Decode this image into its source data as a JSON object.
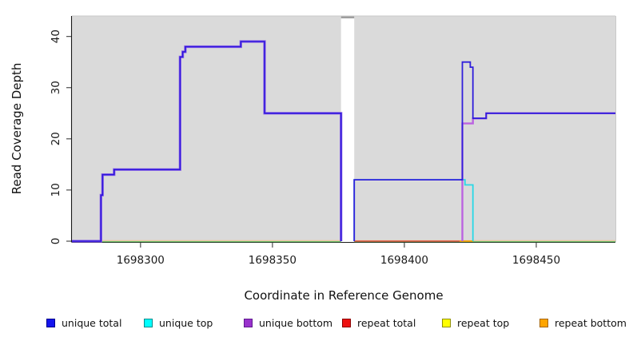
{
  "chart_data": {
    "type": "line",
    "style": "step",
    "title": "",
    "xlabel": "Coordinate in Reference Genome",
    "ylabel": "Read Coverage Depth",
    "x_ticks": [
      1698300,
      1698350,
      1698400,
      1698450
    ],
    "y_ticks": [
      0,
      10,
      20,
      30,
      40
    ],
    "x_range": [
      1698274,
      1698480
    ],
    "y_range": [
      0,
      44
    ],
    "grid": false,
    "legend_position": "bottom",
    "panel_background": "#DADADA",
    "gap": {
      "from": 1698376,
      "to": 1698381,
      "notch_color": "#9E9E9E"
    },
    "baseline": {
      "spans": [
        [
          1698274,
          1698376
        ],
        [
          1698381,
          1698480
        ]
      ],
      "green": "#5BBB5B",
      "peach": "#F0C08A"
    },
    "series": [
      {
        "name": "repeat total",
        "color": "#E03131",
        "width": 1.3,
        "points": [
          [
            1698381,
            0
          ],
          [
            1698421,
            0
          ]
        ]
      },
      {
        "name": "repeat bottom",
        "color": "#F59F00",
        "width": 1.8,
        "points": [
          [
            1698421,
            0
          ],
          [
            1698426,
            0
          ]
        ]
      },
      {
        "name": "unique top",
        "color": "#29D8E6",
        "width": 1.8,
        "points": [
          [
            1698381,
            0
          ],
          [
            1698381,
            12
          ],
          [
            1698423,
            12
          ],
          [
            1698423,
            11
          ],
          [
            1698426,
            11
          ],
          [
            1698426,
            0
          ]
        ]
      },
      {
        "name": "unique bottom (left block)",
        "color": "#8A63E8",
        "width": 3.2,
        "points": [
          [
            1698274,
            0
          ],
          [
            1698285,
            0
          ],
          [
            1698285,
            9
          ],
          [
            1698285.6,
            9
          ],
          [
            1698285.6,
            13
          ],
          [
            1698290,
            13
          ],
          [
            1698290,
            14
          ],
          [
            1698315,
            14
          ],
          [
            1698315,
            36
          ],
          [
            1698316,
            36
          ],
          [
            1698316,
            37
          ],
          [
            1698317,
            37
          ],
          [
            1698317,
            38
          ],
          [
            1698338,
            38
          ],
          [
            1698338,
            39
          ],
          [
            1698347,
            39
          ],
          [
            1698347,
            25
          ],
          [
            1698376,
            25
          ],
          [
            1698376,
            0
          ]
        ]
      },
      {
        "name": "unique total (left block)",
        "color": "#2F16DB",
        "width": 1.6,
        "points": [
          [
            1698274,
            0
          ],
          [
            1698285,
            0
          ],
          [
            1698285,
            9
          ],
          [
            1698285.6,
            9
          ],
          [
            1698285.6,
            13
          ],
          [
            1698290,
            13
          ],
          [
            1698290,
            14
          ],
          [
            1698315,
            14
          ],
          [
            1698315,
            36
          ],
          [
            1698316,
            36
          ],
          [
            1698316,
            37
          ],
          [
            1698317,
            37
          ],
          [
            1698317,
            38
          ],
          [
            1698338,
            38
          ],
          [
            1698338,
            39
          ],
          [
            1698347,
            39
          ],
          [
            1698347,
            25
          ],
          [
            1698376,
            25
          ],
          [
            1698376,
            0
          ]
        ]
      },
      {
        "name": "unique bottom (right block)",
        "color": "#BB63E0",
        "width": 2.4,
        "points": [
          [
            1698422,
            0
          ],
          [
            1698422,
            23
          ],
          [
            1698426,
            23
          ],
          [
            1698426,
            24
          ],
          [
            1698431,
            24
          ],
          [
            1698431,
            25
          ],
          [
            1698480,
            25
          ]
        ]
      },
      {
        "name": "unique total (right block)",
        "color": "#2F1EDB",
        "width": 1.8,
        "points": [
          [
            1698381,
            0
          ],
          [
            1698381,
            12
          ],
          [
            1698422,
            12
          ],
          [
            1698422,
            35
          ],
          [
            1698425,
            35
          ],
          [
            1698425,
            34
          ],
          [
            1698426,
            34
          ],
          [
            1698426,
            24
          ],
          [
            1698431,
            24
          ],
          [
            1698431,
            25
          ],
          [
            1698480,
            25
          ]
        ]
      }
    ]
  },
  "legend": {
    "items": [
      {
        "label": "unique total",
        "color": "#1414EE",
        "border": "#00008B"
      },
      {
        "label": "unique top",
        "color": "#00FFFF",
        "border": "#008B8B"
      },
      {
        "label": "unique bottom",
        "color": "#9932CC",
        "border": "#5E1A8E"
      },
      {
        "label": "repeat total",
        "color": "#EE1111",
        "border": "#8B0000"
      },
      {
        "label": "repeat top",
        "color": "#FFFF00",
        "border": "#8F8F00"
      },
      {
        "label": "repeat bottom",
        "color": "#FFA500",
        "border": "#A66400"
      }
    ]
  }
}
